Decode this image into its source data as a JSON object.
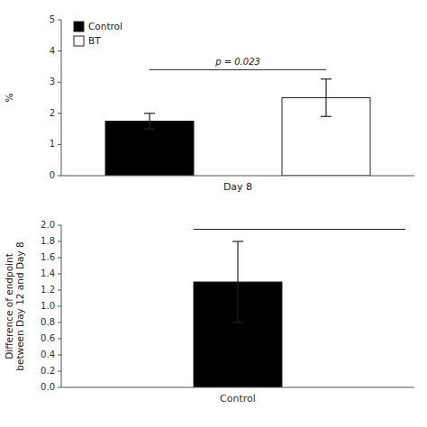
{
  "chart_data": [
    {
      "type": "bar",
      "categories": [
        "Control",
        "BT"
      ],
      "values": [
        1.75,
        2.5
      ],
      "errors": [
        0.25,
        0.6
      ],
      "colors": [
        "#000000",
        "#ffffff"
      ],
      "ylabel": "%",
      "xlabel": "Day 8",
      "ylim": [
        0,
        5
      ],
      "yticks": [
        0,
        1,
        2,
        3,
        4,
        5
      ],
      "annotations": [
        {
          "text": "p = 0.023",
          "y": 3.4
        }
      ],
      "legend": "upper left",
      "tick_labels": "y",
      "grid": false
    },
    {
      "type": "bar",
      "categories": [
        "Control"
      ],
      "values": [
        1.3
      ],
      "errors": [
        0.5
      ],
      "colors": [
        "#000000"
      ],
      "ylabel": "Difference of endpoint\nbetween Day 12 and Day 8",
      "ylim": [
        0,
        2.0
      ],
      "yticks": [
        {
          "value": 0,
          "label": "0.0"
        },
        0.2,
        0.4,
        0.6,
        0.8,
        {
          "value": 1.0,
          "label": "1.0"
        },
        1.2,
        1.4,
        1.6,
        1.8,
        {
          "value": 2.0,
          "label": "2.0"
        }
      ],
      "annotations": [
        {
          "y": 1.95
        }
      ],
      "grid": false
    }
  ]
}
